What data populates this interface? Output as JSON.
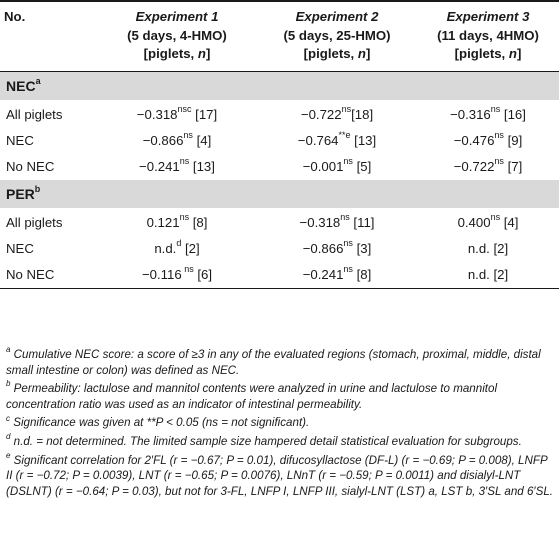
{
  "header": {
    "col0": "No.",
    "experiments": [
      {
        "title": "Experiment 1",
        "line2": "(5 days, 4-HMO)",
        "line3": "[piglets, n]"
      },
      {
        "title": "Experiment 2",
        "line2": "(5 days, 25-HMO)",
        "line3": "[piglets, n]"
      },
      {
        "title": "Experiment 3",
        "line2": "(11 days, 4HMO)",
        "line3": "[piglets, n]"
      }
    ]
  },
  "sections": [
    {
      "label": "NEC",
      "sup": "a",
      "rows": [
        {
          "label": "All piglets",
          "cells": [
            {
              "v": "−0.318",
              "s": "nsc",
              "n": " [17]"
            },
            {
              "v": "−0.722",
              "s": "ns",
              "n": "[18]"
            },
            {
              "v": "−0.316",
              "s": "ns",
              "n": " [16]"
            }
          ]
        },
        {
          "label": "NEC",
          "cells": [
            {
              "v": "−0.866",
              "s": "ns",
              "n": " [4]"
            },
            {
              "v": "−0.764",
              "s": "**e",
              "n": " [13]"
            },
            {
              "v": "−0.476",
              "s": "ns",
              "n": " [9]"
            }
          ]
        },
        {
          "label": "No NEC",
          "cells": [
            {
              "v": "−0.241",
              "s": "ns",
              "n": " [13]"
            },
            {
              "v": "−0.001",
              "s": "ns",
              "n": " [5]"
            },
            {
              "v": "−0.722",
              "s": "ns",
              "n": " [7]"
            }
          ]
        }
      ]
    },
    {
      "label": "PER",
      "sup": "b",
      "rows": [
        {
          "label": "All piglets",
          "cells": [
            {
              "v": "0.121",
              "s": "ns",
              "n": " [8]"
            },
            {
              "v": "−0.318",
              "s": "ns",
              "n": " [11]"
            },
            {
              "v": "0.400",
              "s": "ns",
              "n": " [4]"
            }
          ]
        },
        {
          "label": "NEC",
          "cells": [
            {
              "v": "n.d.",
              "s": "d",
              "n": " [2]"
            },
            {
              "v": "−0.866",
              "s": "ns",
              "n": " [3]"
            },
            {
              "v": "n.d.",
              "s": "",
              "n": " [2]"
            }
          ]
        },
        {
          "label": "No NEC",
          "cells": [
            {
              "v": "−0.116",
              "s": " ns",
              "n": " [6]"
            },
            {
              "v": "−0.241",
              "s": "ns",
              "n": " [8]"
            },
            {
              "v": "n.d.",
              "s": "",
              "n": " [2]"
            }
          ]
        }
      ]
    }
  ],
  "footnotes": [
    {
      "mark": "a",
      "text": " Cumulative NEC score: a score of ≥3 in any of the evaluated regions (stomach, proximal, middle, distal small intestine or colon) was defined as NEC."
    },
    {
      "mark": "b",
      "text": " Permeability: lactulose and mannitol contents were analyzed in urine and lactulose to mannitol concentration ratio was used as an indicator of intestinal permeability."
    },
    {
      "mark": "c",
      "text": " Significance was given at **P < 0.05 (ns = not significant)."
    },
    {
      "mark": "d",
      "text": " n.d. = not determined. The limited sample size hampered detail statistical evaluation for subgroups."
    },
    {
      "mark": "e",
      "text": " Significant correlation for 2′FL (r = −0.67; P = 0.01), difucosyllactose (DF-L) (r = −0.69; P = 0.008), LNFP II (r = −0.72; P = 0.0039), LNT (r = −0.65; P = 0.0076), LNnT (r = −0.59; P = 0.0011) and disialyl-LNT (DSLNT) (r = −0.64; P = 0.03), but not for 3-FL, LNFP I, LNFP III, sialyl-LNT (LST) a, LST b, 3′SL and 6′SL."
    }
  ]
}
